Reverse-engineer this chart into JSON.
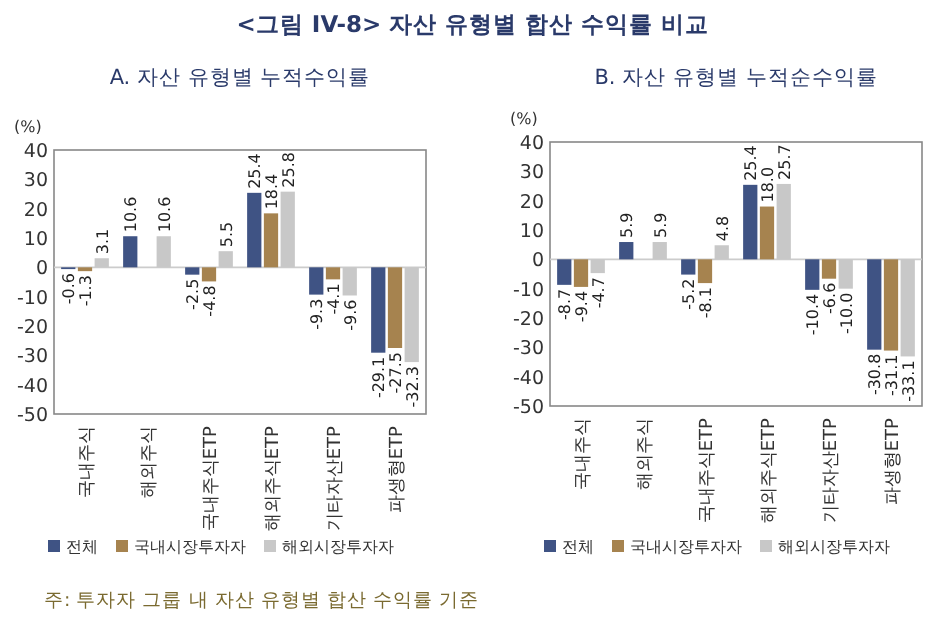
{
  "chart_data": [
    {
      "type": "bar",
      "title": "<그림 IV-8> 자산 유형별 합산 수익률 비교",
      "subtitle": "A. 자산 유형별 누적수익률",
      "ylabel": "(%)",
      "categories": [
        "국내주식",
        "해외주식",
        "국내주식ETP",
        "해외주식ETP",
        "기타자산ETP",
        "파생형ETP"
      ],
      "series": [
        {
          "name": "전체",
          "color": "#3f5384",
          "values": [
            -0.6,
            10.6,
            -2.5,
            25.4,
            -9.3,
            -29.1
          ]
        },
        {
          "name": "국내시장투자자",
          "color": "#a6834f",
          "values": [
            -1.3,
            null,
            -4.8,
            18.4,
            -4.1,
            -27.5
          ]
        },
        {
          "name": "해외시장투자자",
          "color": "#c8c8c8",
          "values": [
            3.1,
            10.6,
            5.5,
            25.8,
            -9.6,
            -32.3
          ]
        }
      ],
      "ylim": [
        -50,
        40
      ],
      "yticks": [
        -50,
        -40,
        -30,
        -20,
        -10,
        0,
        10,
        20,
        30,
        40
      ],
      "data_labels": true,
      "legend": "bottom",
      "annotations": [
        "주: 투자자 그룹 내 자산 유형별 합산 수익률 기준"
      ]
    },
    {
      "type": "bar",
      "subtitle": "B. 자산 유형별 누적순수익률",
      "ylabel": "(%)",
      "categories": [
        "국내주식",
        "해외주식",
        "국내주식ETP",
        "해외주식ETP",
        "기타자산ETP",
        "파생형ETP"
      ],
      "series": [
        {
          "name": "전체",
          "color": "#3f5384",
          "values": [
            -8.7,
            5.9,
            -5.2,
            25.4,
            -10.4,
            -30.8
          ]
        },
        {
          "name": "국내시장투자자",
          "color": "#a6834f",
          "values": [
            -9.4,
            null,
            -8.1,
            18.0,
            -6.6,
            -31.1
          ],
          "value_labels": [
            "-9.4",
            null,
            "-8.1",
            "18.0",
            "-6.6",
            "-31.1"
          ]
        },
        {
          "name": "해외시장투자자",
          "color": "#c8c8c8",
          "values": [
            -4.7,
            5.9,
            4.8,
            25.7,
            -10.0,
            -33.1
          ],
          "value_labels": [
            "-4.7",
            "5.9",
            "4.8",
            "25.7",
            "-10.0",
            "-33.1"
          ]
        }
      ],
      "ylim": [
        -50,
        40
      ],
      "yticks": [
        -50,
        -40,
        -30,
        -20,
        -10,
        0,
        10,
        20,
        30,
        40
      ],
      "data_labels": true,
      "legend": "bottom"
    }
  ]
}
